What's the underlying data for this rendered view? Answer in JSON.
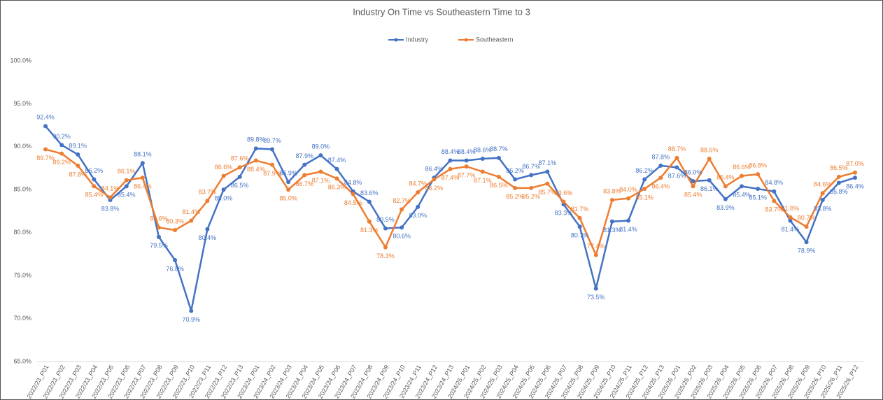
{
  "chart_data": {
    "type": "line",
    "title": "Industry On Time vs Southeastern Time to 3",
    "categories": [
      "2022/23_P01",
      "2022/23_P02",
      "2022/23_P03",
      "2022/23_P04",
      "2022/23_P05",
      "2022/23_P06",
      "2022/23_P07",
      "2022/23_P08",
      "2022/23_P09",
      "2022/23_P10",
      "2022/23_P11",
      "2022/23_P12",
      "2022/23_P13",
      "2023/24_P01",
      "2023/24_P02",
      "2023/24_P03",
      "2023/24_P04",
      "2023/24_P05",
      "2023/24_P06",
      "2023/24_P07",
      "2023/24_P08",
      "2023/24_P09",
      "2023/24_P10",
      "2023/24_P11",
      "2023/24_P12",
      "2023/24_P13",
      "2024/25_P01",
      "2024/25_P02",
      "2024/25_P03",
      "2024/25_P04",
      "2024/25_P05",
      "2024/25_P06",
      "2024/25_P07",
      "2024/25_P08",
      "2024/25_P09",
      "2024/25_P10",
      "2024/25_P11",
      "2024/25_P12",
      "2024/25_P13",
      "2025/26_P01",
      "2025/26_P02",
      "2025/26_P03",
      "2025/26_P04",
      "2025/26_P05",
      "2025/26_P06",
      "2025/26_P07",
      "2025/26_P08",
      "2025/26_P09",
      "2025/26_P10",
      "2025/26_P11",
      "2025/26_P12"
    ],
    "series": [
      {
        "name": "Industry",
        "color": "#4472c4",
        "values": [
          92.4,
          90.2,
          89.1,
          86.2,
          83.8,
          85.4,
          88.1,
          79.5,
          76.8,
          70.9,
          80.4,
          85.0,
          86.5,
          89.8,
          89.7,
          85.9,
          87.9,
          89.0,
          87.4,
          84.8,
          83.6,
          80.5,
          80.6,
          83.0,
          86.4,
          88.4,
          88.4,
          88.6,
          88.7,
          86.2,
          86.7,
          87.1,
          83.3,
          80.7,
          73.5,
          81.3,
          81.4,
          86.2,
          87.8,
          87.6,
          86.0,
          86.1,
          83.9,
          85.4,
          85.1,
          84.8,
          81.4,
          78.9,
          83.8,
          85.8,
          86.4
        ],
        "value_labels": [
          "92.4%",
          "90.2%",
          "89.1%",
          "86.2%",
          "83.8%",
          "85.4%",
          "88.1%",
          "79.5%",
          "76.8%",
          "70.9%",
          "80.4%",
          "85.0%",
          "86.5%",
          "89.8%",
          "89.7%",
          "85.9%",
          "87.9%",
          "89.0%",
          "87.4%",
          "84.8%",
          "83.6%",
          "80.5%",
          "80.6%",
          "83.0%",
          "86.4%",
          "88.4%",
          "88.4%",
          "88.6%",
          "88.7%",
          "86.2%",
          "86.7%",
          "87.1%",
          "83.3%",
          "80.7%",
          "73.5%",
          "81.3%",
          "81.4%",
          "86.2%",
          "87.8%",
          "87.6%",
          "86.0%",
          "86.1%",
          "83.9%",
          "85.4%",
          "85.1%",
          "84.8%",
          "81.4%",
          "78.9%",
          "83.8%",
          "85.8%",
          "86.4%"
        ]
      },
      {
        "name": "Southeastern",
        "color": "#ed7d31",
        "values": [
          89.7,
          89.2,
          87.8,
          85.4,
          84.1,
          86.1,
          86.4,
          80.6,
          80.3,
          81.4,
          83.7,
          86.6,
          87.6,
          88.4,
          87.9,
          85.0,
          86.7,
          87.1,
          86.3,
          84.5,
          81.3,
          78.3,
          82.7,
          84.7,
          86.2,
          87.4,
          87.7,
          87.1,
          86.5,
          85.2,
          85.2,
          85.7,
          83.6,
          81.7,
          77.4,
          83.8,
          84.0,
          85.1,
          86.4,
          88.7,
          85.4,
          88.6,
          85.4,
          86.6,
          86.8,
          83.7,
          81.8,
          80.7,
          84.6,
          86.5,
          87.0
        ],
        "value_labels": [
          "89.7%",
          "89.2%",
          "87.8%",
          "85.4%",
          "84.1%",
          "86.1%",
          "86.4%",
          "80.6%",
          "80.3%",
          "81.4%",
          "83.7%",
          "86.6%",
          "87.6%",
          "88.4%",
          "87.9%",
          "85.0%",
          "86.7%",
          "87.1%",
          "86.3%",
          "84.5%",
          "81.3%",
          "78.3%",
          "82.7%",
          "84.7%",
          "86.2%",
          "87.4%",
          "87.7%",
          "87.1%",
          "86.5%",
          "85.2%",
          "85.2%",
          "85.7%",
          "83.6%",
          "81.7%",
          "77.4%",
          "83.8%",
          "84.0%",
          "85.1%",
          "86.4%",
          "88.7%",
          "85.4%",
          "88.6%",
          "85.4%",
          "86.6%",
          "86.8%",
          "83.7%",
          "81.8%",
          "80.7%",
          "84.6%",
          "86.5%",
          "87.0%"
        ]
      }
    ],
    "ylim": [
      65,
      100
    ],
    "yticks": [
      {
        "value": 65,
        "label": "65.0%"
      },
      {
        "value": 70,
        "label": "70.0%"
      },
      {
        "value": 75,
        "label": "75.0%"
      },
      {
        "value": 80,
        "label": "80.0%"
      },
      {
        "value": 85,
        "label": "85.0%"
      },
      {
        "value": 90,
        "label": "90.0%"
      },
      {
        "value": 95,
        "label": "95.0%"
      },
      {
        "value": 100,
        "label": "100.0%"
      }
    ],
    "grid": false,
    "legend": "top"
  }
}
